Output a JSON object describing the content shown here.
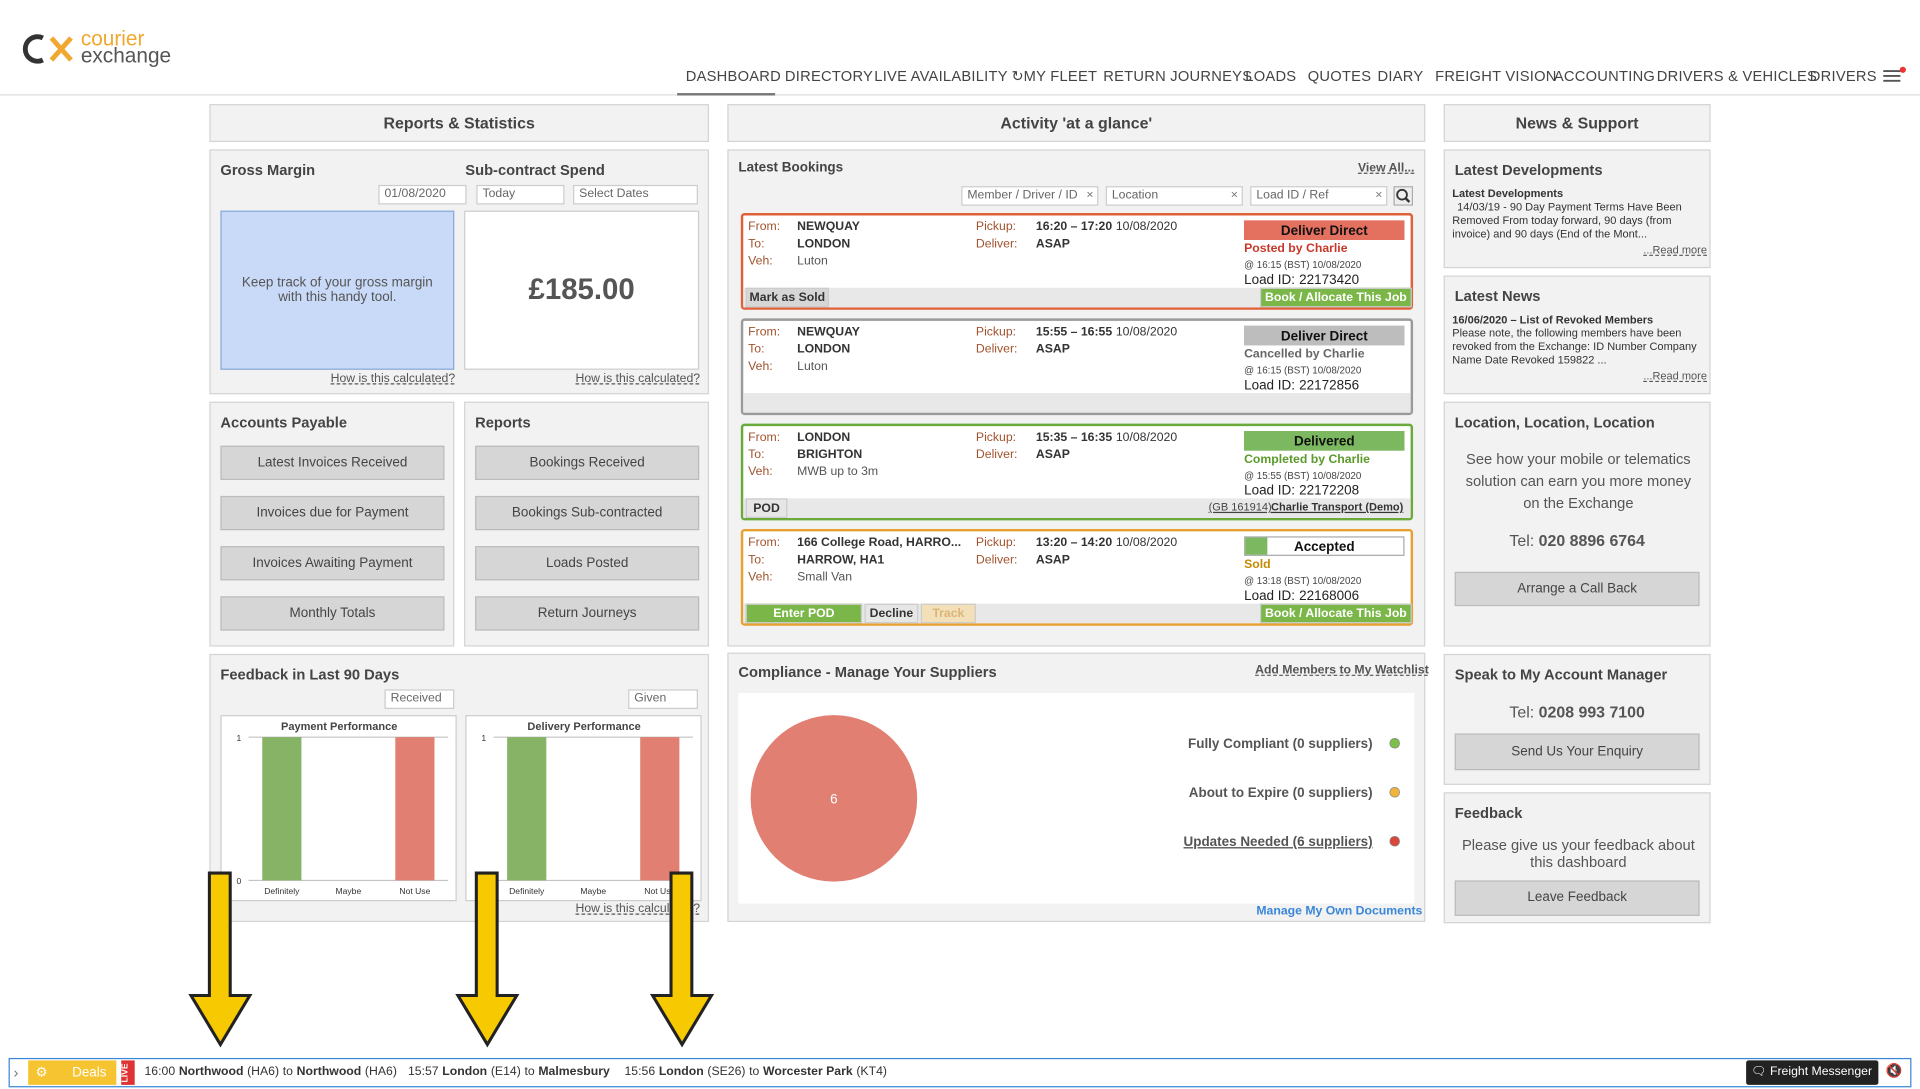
{
  "logo": {
    "line1": "courier",
    "line2": "exchange"
  },
  "nav": [
    "DASHBOARD",
    "DIRECTORY",
    "LIVE AVAILABILITY",
    "MY FLEET",
    "RETURN JOURNEYS",
    "LOADS",
    "QUOTES",
    "DIARY",
    "FREIGHT VISION",
    "ACCOUNTING",
    "DRIVERS & VEHICLES",
    "DRIVERS"
  ],
  "reports": {
    "title": "Reports & Statistics",
    "gross_margin": {
      "title": "Gross Margin",
      "date": "01/08/2020",
      "text": "Keep track of your gross margin with this handy tool.",
      "link": "How is this calculated?"
    },
    "subcontract": {
      "title": "Sub-contract Spend",
      "from": "Today",
      "select": "Select Dates",
      "amount": "£185.00",
      "link": "How is this calculated?"
    },
    "accounts_payable": {
      "title": "Accounts Payable",
      "buttons": [
        "Latest Invoices Received",
        "Invoices due for Payment",
        "Invoices Awaiting Payment",
        "Monthly Totals"
      ]
    },
    "reports_box": {
      "title": "Reports",
      "buttons": [
        "Bookings Received",
        "Bookings Sub-contracted",
        "Loads Posted",
        "Return Journeys"
      ]
    },
    "feedback": {
      "title": "Feedback in Last 90 Days",
      "select1": "Received",
      "select2": "Given",
      "link": "How is this calculated?",
      "charts": [
        {
          "type": "bar",
          "title": "Payment Performance",
          "categories": [
            "Definitely",
            "Maybe",
            "Not Use"
          ],
          "values": [
            1,
            0,
            1
          ],
          "colors": [
            "#86b366",
            "#86b366",
            "#e07f72"
          ],
          "ylim": [
            0,
            1
          ],
          "yticks": [
            0,
            1
          ]
        },
        {
          "type": "bar",
          "title": "Delivery Performance",
          "categories": [
            "Definitely",
            "Maybe",
            "Not Use"
          ],
          "values": [
            1,
            0,
            1
          ],
          "colors": [
            "#86b366",
            "#86b366",
            "#e07f72"
          ],
          "ylim": [
            0,
            1
          ],
          "yticks": [
            0,
            1
          ]
        }
      ]
    }
  },
  "activity": {
    "title": "Activity 'at a glance'",
    "latest": "Latest Bookings",
    "view_all": "View All...",
    "filters": [
      "Member / Driver / ID",
      "Location",
      "Load ID / Ref"
    ],
    "labels": {
      "from": "From:",
      "to": "To:",
      "veh": "Veh:",
      "pickup": "Pickup:",
      "deliver": "Deliver:",
      "load_id": "Load ID:"
    },
    "bookings": [
      {
        "from": "NEWQUAY",
        "to": "LONDON",
        "veh": "Luton",
        "pickup": "16:20 – 17:20",
        "date": "10/08/2020",
        "deliver": "ASAP",
        "status": "Deliver Direct",
        "by": "Posted by Charlie",
        "time": "@ 16:15 (BST) 10/08/2020",
        "load_id": "22173420",
        "buttons": [
          "Mark as Sold",
          "Book / Allocate This Job"
        ]
      },
      {
        "from": "NEWQUAY",
        "to": "LONDON",
        "veh": "Luton",
        "pickup": "15:55 – 16:55",
        "date": "10/08/2020",
        "deliver": "ASAP",
        "status": "Deliver Direct",
        "by": "Cancelled by Charlie",
        "time": "@ 16:15 (BST) 10/08/2020",
        "load_id": "22172856",
        "buttons": []
      },
      {
        "from": "LONDON",
        "to": "BRIGHTON",
        "veh": "MWB up to 3m",
        "pickup": "15:35 – 16:35",
        "date": "10/08/2020",
        "deliver": "ASAP",
        "status": "Delivered",
        "by": "Completed by Charlie",
        "time": "@ 15:55 (BST) 10/08/2020",
        "load_id": "22172208",
        "buttons": [
          "POD"
        ],
        "member": "(GB 161914)",
        "company": "Charlie Transport (Demo)"
      },
      {
        "from": "166 College Road, HARRO...",
        "to": "HARROW, HA1",
        "veh": "Small Van",
        "pickup": "13:20 – 14:20",
        "date": "10/08/2020",
        "deliver": "ASAP",
        "status": "Accepted",
        "by": "Sold",
        "time": "@ 13:18 (BST) 10/08/2020",
        "load_id": "22168006",
        "buttons": [
          "Enter POD",
          "Decline",
          "Track",
          "Book / Allocate This Job"
        ]
      }
    ]
  },
  "compliance": {
    "title": "Compliance - Manage Your Suppliers",
    "watchlist": "Add Members to My Watchlist",
    "pie": {
      "type": "pie",
      "values": [
        6
      ],
      "color": "#e07f72"
    },
    "legend": [
      {
        "name": "Fully Compliant (0 suppliers)",
        "color": "#7cc04a"
      },
      {
        "name": "About to Expire (0 suppliers)",
        "color": "#f0b43c"
      },
      {
        "name": "Updates Needed (6 suppliers)",
        "color": "#d9463a"
      }
    ],
    "manage": "Manage My Own Documents"
  },
  "news": {
    "title": "News & Support",
    "developments": {
      "title": "Latest Developments",
      "headline": "Latest Developments",
      "text": "14/03/19 - 90 Day Payment Terms Have Been Removed From today forward, 90 days (from invoice) and 90 days (End of the Mont...",
      "more": "...Read more"
    },
    "latest_news": {
      "title": "Latest News",
      "headline": "16/06/2020 – List of Revoked Members",
      "text": "Please note, the following members have been revoked from the Exchange: ID Number Company Name Date Revoked 159822 ...",
      "more": "...Read more"
    },
    "location": {
      "title": "Location, Location, Location",
      "text": "See how your mobile or telematics solution can earn you more money on the Exchange",
      "tel_label": "Tel:",
      "tel": "020 8896 6764",
      "button": "Arrange a Call Back"
    },
    "manager": {
      "title": "Speak to My Account Manager",
      "tel_label": "Tel:",
      "tel": "0208 993 7100",
      "button": "Send Us Your Enquiry"
    },
    "feedback": {
      "title": "Feedback",
      "text": "Please give us your feedback about this dashboard",
      "button": "Leave Feedback"
    }
  },
  "ticker": {
    "deals": "Deals",
    "live": "LIVE",
    "joiner": "to",
    "messenger": "Freight Messenger",
    "items": [
      {
        "time": "16:00",
        "from": "Northwood",
        "from_pc": "(HA6)",
        "to": "Northwood",
        "to_pc": "(HA6)"
      },
      {
        "time": "15:57",
        "from": "London",
        "from_pc": "(E14)",
        "to": "Malmesbury"
      },
      {
        "time": "15:56",
        "from": "London",
        "from_pc": "(SE26)",
        "to": "Worcester Park",
        "to_pc": "(KT4)"
      }
    ]
  }
}
